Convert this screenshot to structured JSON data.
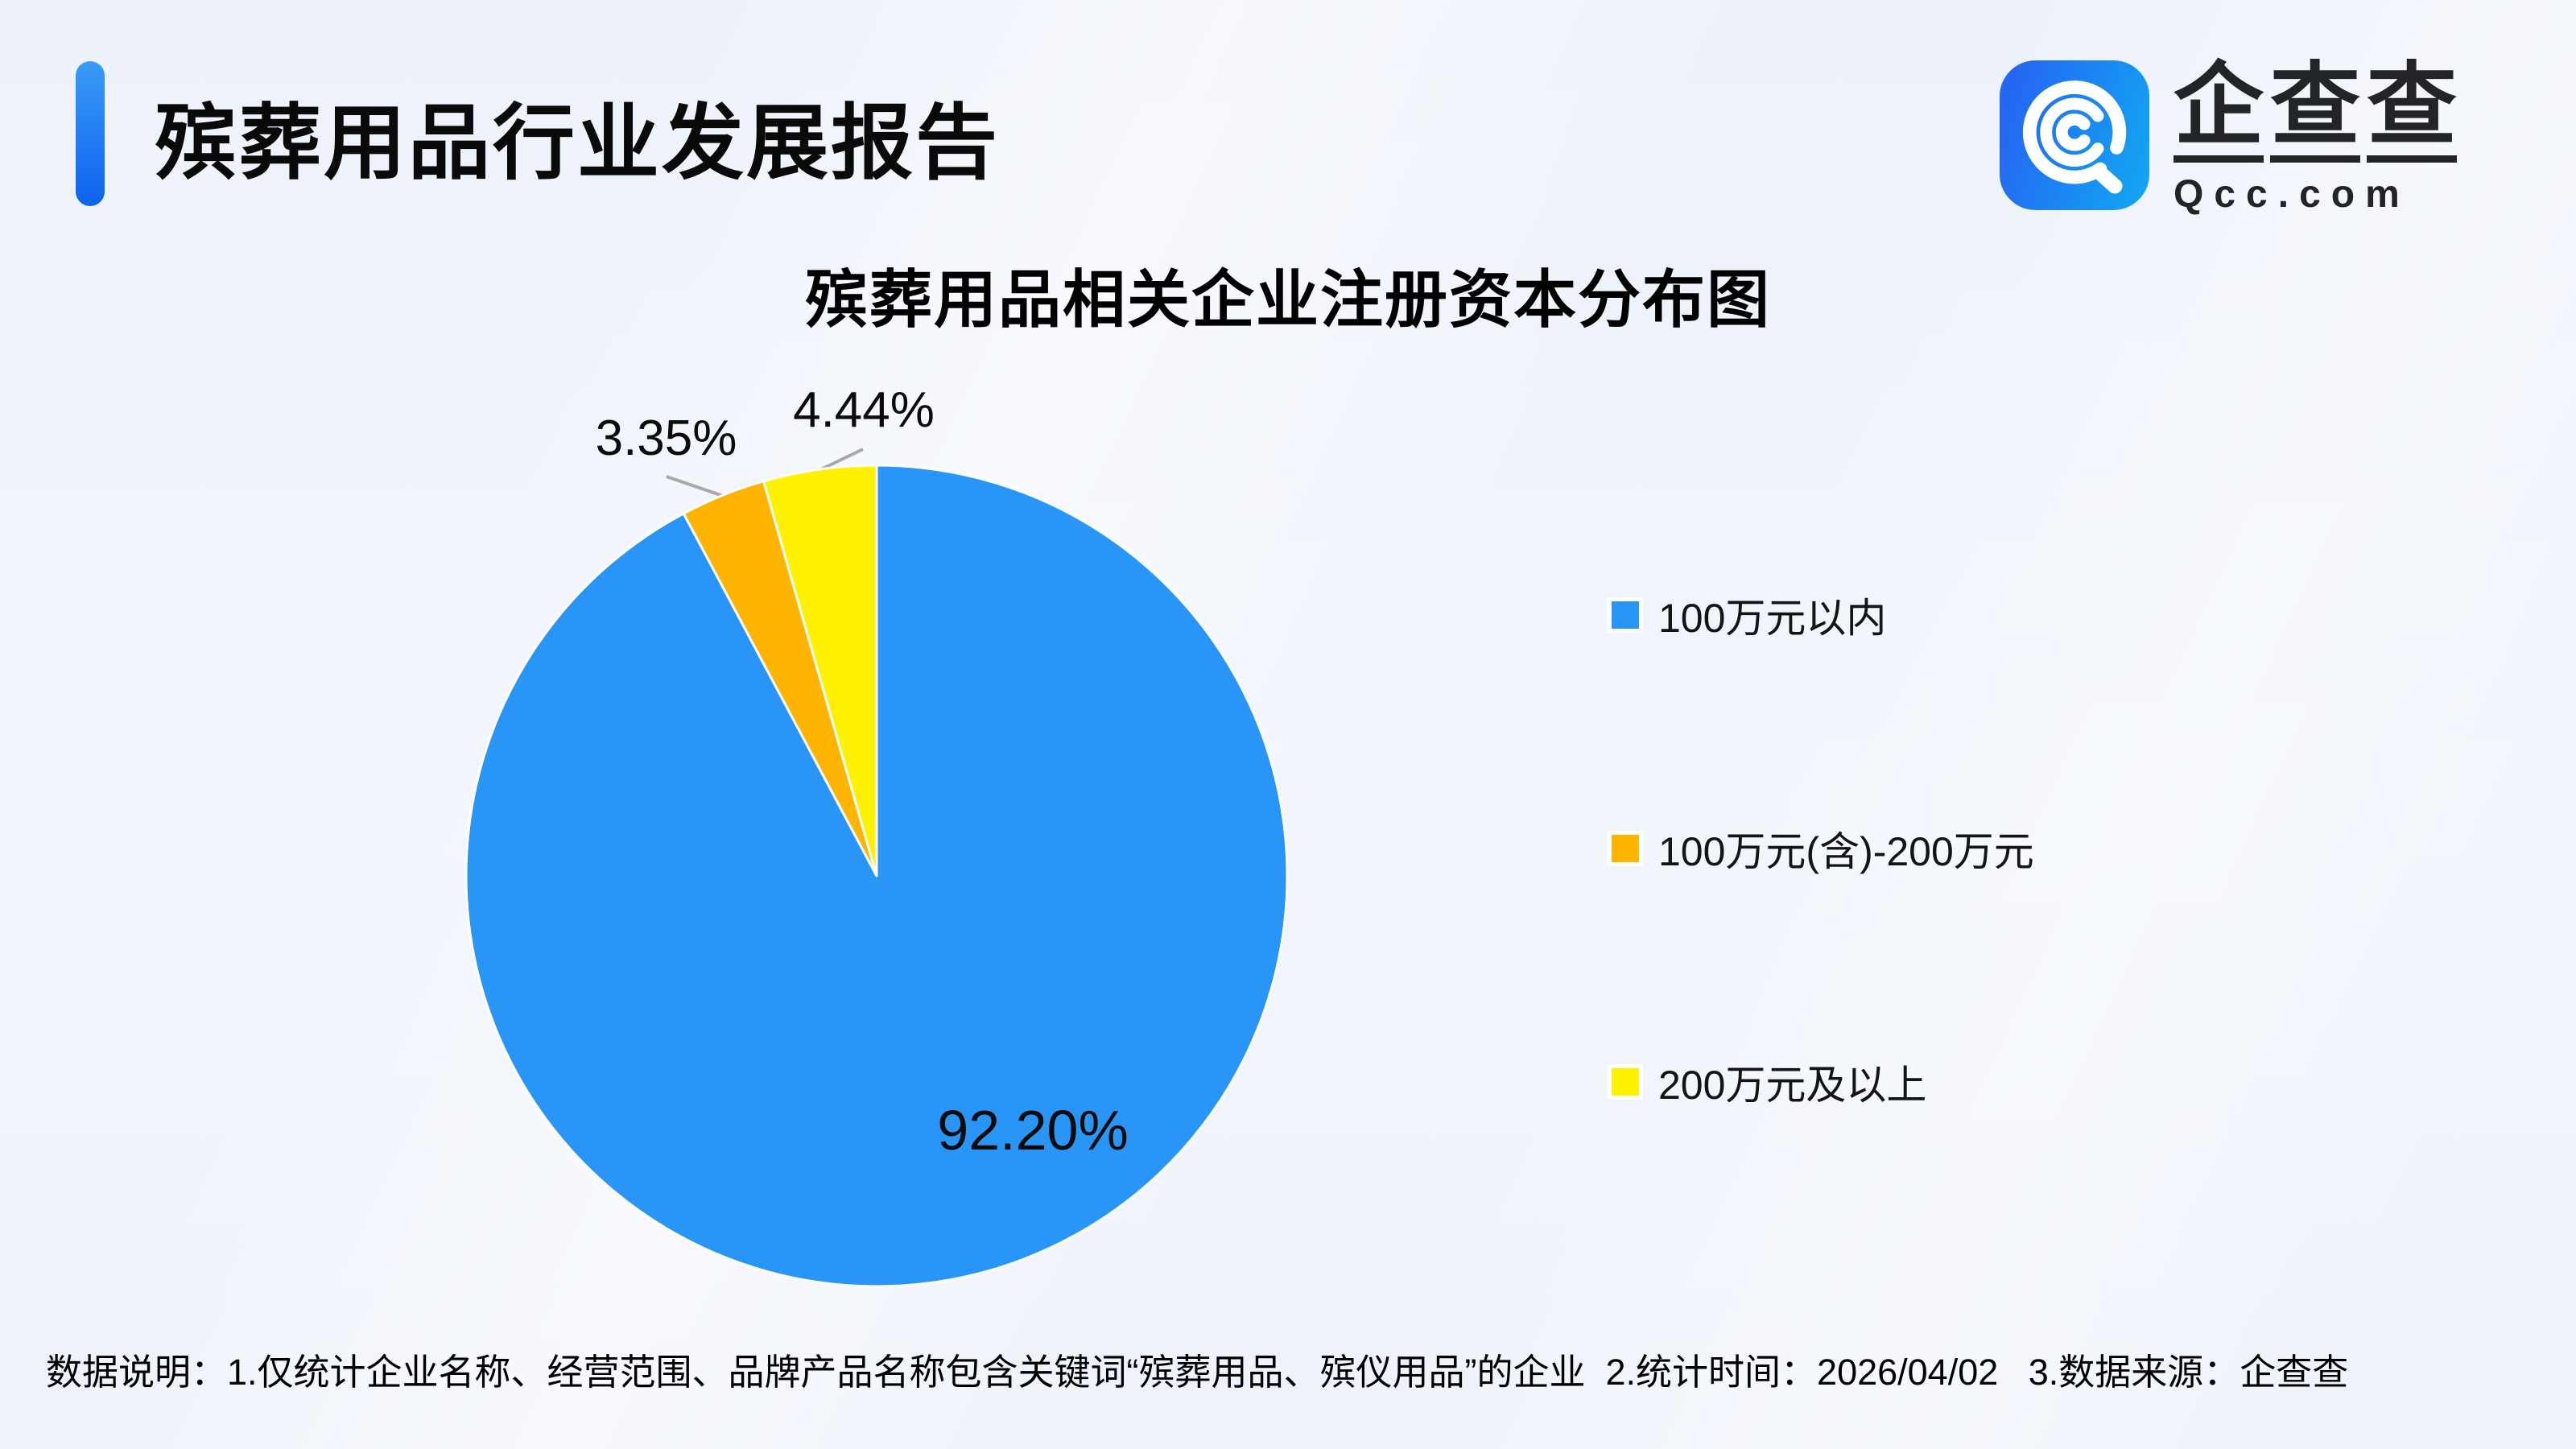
{
  "header": {
    "title": "殡葬用品行业发展报告",
    "accent_color": "#0f6cf0"
  },
  "logo": {
    "chars": [
      "企",
      "查",
      "查"
    ],
    "domain": "Qcc.com",
    "icon": "qcc-magnifier-icon",
    "icon_gradient": [
      "#2566f2",
      "#13a3f2"
    ]
  },
  "chart_data": {
    "type": "pie",
    "title": "殡葬用品相关企业注册资本分布图",
    "unit": "%",
    "start_angle_deg": 0,
    "direction": "clockwise",
    "legend_position": "right",
    "segments": [
      {
        "label": "100万元以内",
        "value": 92.2,
        "display": "92.20%",
        "color": "#2996f7",
        "label_style": "inside"
      },
      {
        "label": "100万元(含)-200万元",
        "value": 3.35,
        "display": "3.35%",
        "color": "#ffb400",
        "label_style": "callout"
      },
      {
        "label": "200万元及以上",
        "value": 4.44,
        "display": "4.44%",
        "color": "#fff200",
        "label_style": "callout"
      }
    ]
  },
  "footer": {
    "note": "数据说明：1.仅统计企业名称、经营范围、品牌产品名称包含关键词“殡葬用品、殡仪用品”的企业  2.统计时间：2026/04/02   3.数据来源：企查查"
  }
}
